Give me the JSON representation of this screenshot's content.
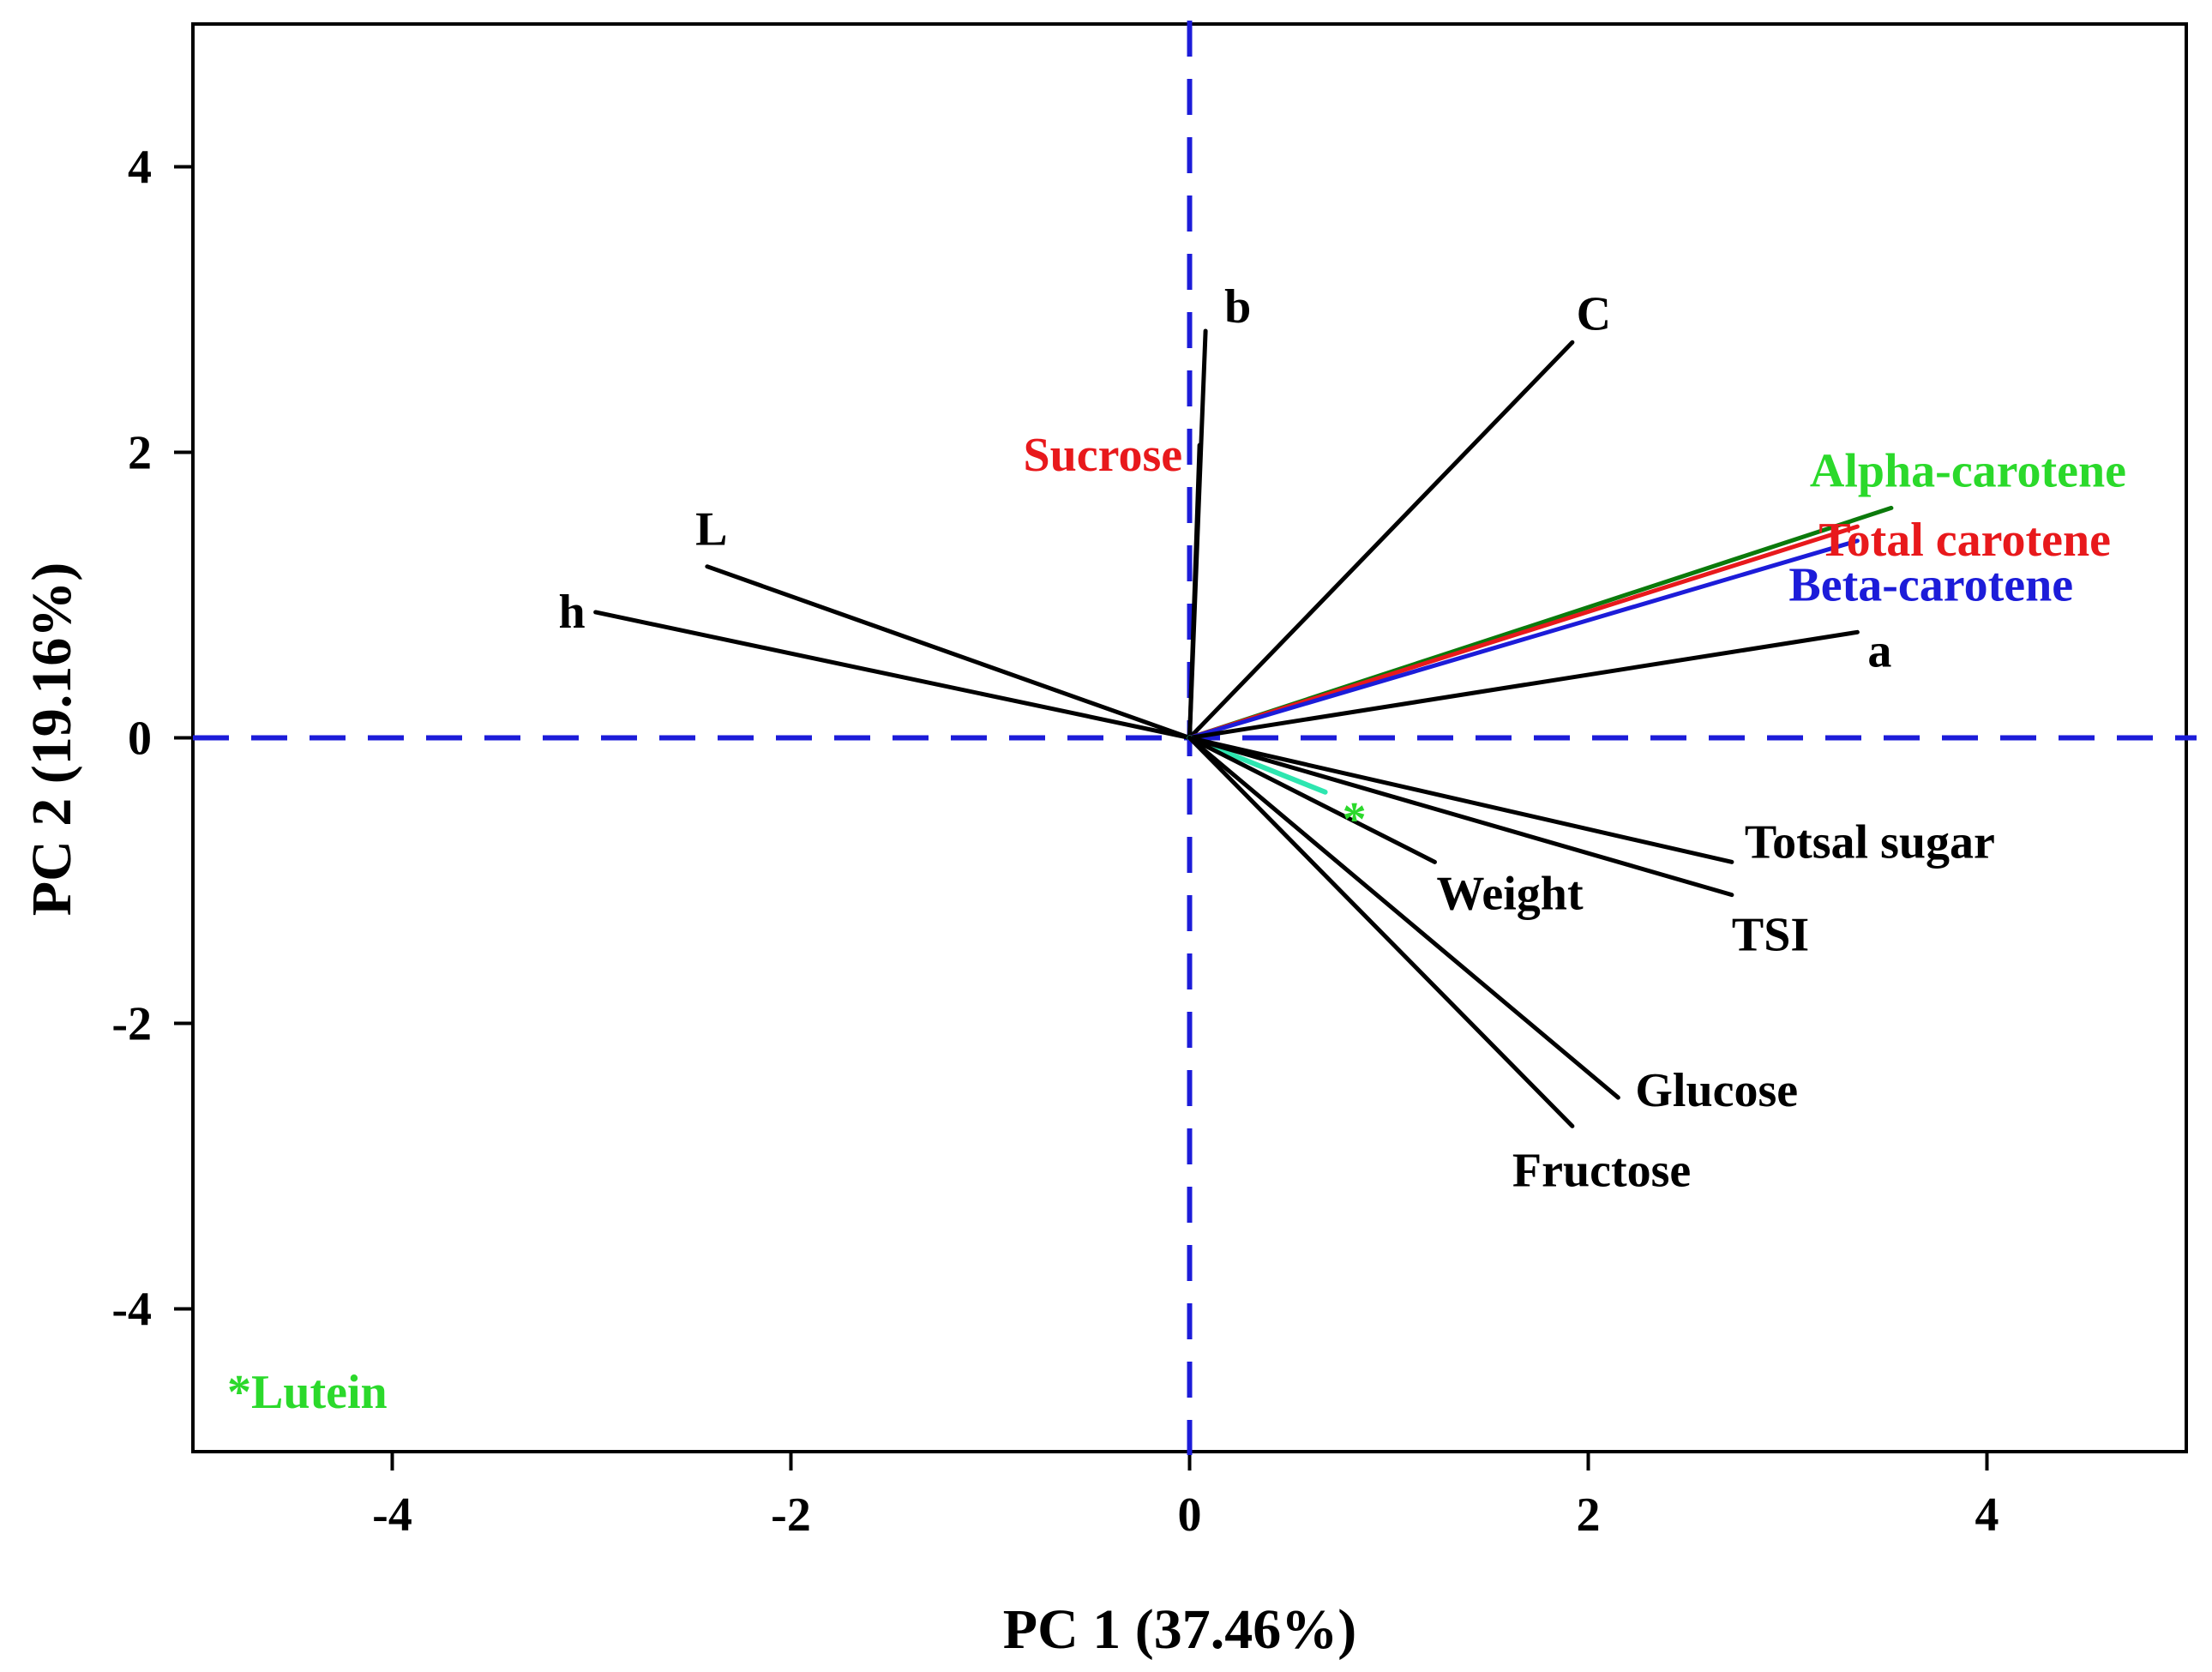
{
  "chart_data": {
    "type": "scatter",
    "subtype": "pca-loading-plot",
    "title": "",
    "xlabel": "PC 1 (37.46%)",
    "ylabel": "PC 2 (19.16%)",
    "xlim": [
      -5,
      5
    ],
    "ylim": [
      -5,
      5
    ],
    "xticks": [
      -4,
      -2,
      0,
      2,
      4
    ],
    "yticks": [
      -4,
      -2,
      0,
      2,
      4
    ],
    "xtick_labels": [
      "-4",
      "-2",
      "0",
      "2",
      "4"
    ],
    "ytick_labels": [
      "-4",
      "-2",
      "0",
      "2",
      "4"
    ],
    "grid": false,
    "reference_lines": {
      "x": 0,
      "y": 0,
      "style": "dashed",
      "color": "#1c1cd9"
    },
    "vectors": [
      {
        "name": "b",
        "x": 0.08,
        "y": 2.85,
        "color": "#000000"
      },
      {
        "name": "Sucrose",
        "x": 0.05,
        "y": 2.05,
        "color": "#000000",
        "label_color": "#e8191c"
      },
      {
        "name": "C",
        "x": 1.92,
        "y": 2.77,
        "color": "#000000"
      },
      {
        "name": "Alpha-carotene",
        "x": 3.52,
        "y": 1.61,
        "color": "#0b7a0b",
        "label_color": "#2bd92b"
      },
      {
        "name": "Total carotene",
        "x": 3.35,
        "y": 1.48,
        "color": "#e8191c",
        "label_color": "#e8191c"
      },
      {
        "name": "Beta-carotene",
        "x": 3.35,
        "y": 1.38,
        "color": "#1c1cd9",
        "label_color": "#1c1cd9"
      },
      {
        "name": "a",
        "x": 3.35,
        "y": 0.74,
        "color": "#000000"
      },
      {
        "name": "L",
        "x": -2.42,
        "y": 1.2,
        "color": "#000000"
      },
      {
        "name": "h",
        "x": -2.98,
        "y": 0.88,
        "color": "#000000"
      },
      {
        "name": "*",
        "x": 0.68,
        "y": -0.38,
        "color": "#2ee6b0",
        "label_color": "#2bd92b"
      },
      {
        "name": "Weight",
        "x": 1.23,
        "y": -0.87,
        "color": "#000000"
      },
      {
        "name": "Totsal sugar",
        "x": 2.72,
        "y": -0.87,
        "color": "#000000"
      },
      {
        "name": "TSI",
        "x": 2.72,
        "y": -1.1,
        "color": "#000000"
      },
      {
        "name": "Glucose",
        "x": 2.15,
        "y": -2.52,
        "color": "#000000"
      },
      {
        "name": "Fructose",
        "x": 1.92,
        "y": -2.72,
        "color": "#000000"
      }
    ],
    "annotations": [
      {
        "text": "*Lutein",
        "color": "#2bd92b",
        "location": "bottom-left"
      }
    ]
  }
}
